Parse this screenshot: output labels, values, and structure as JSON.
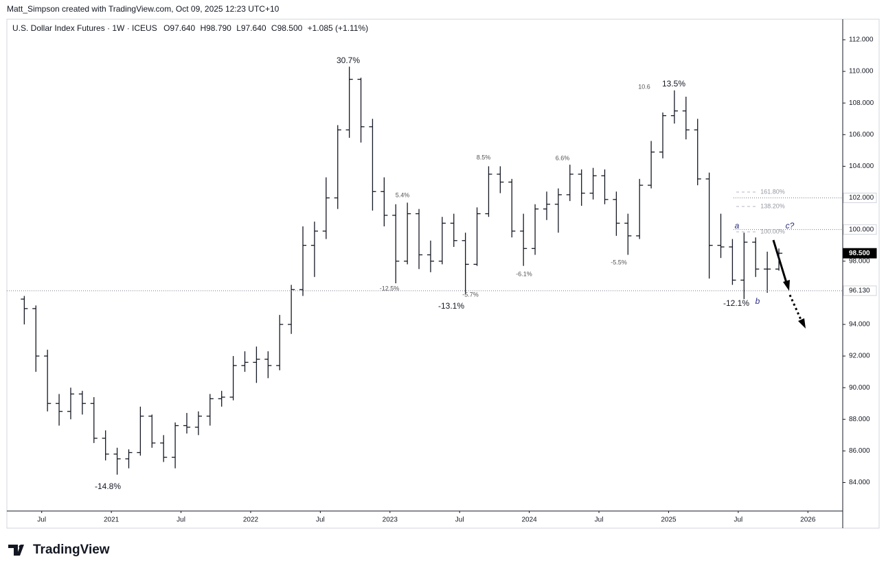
{
  "header": "Matt_Simpson created with TradingView.com, Oct 09, 2025 12:23 UTC+10",
  "footer": "TradingView",
  "chart_data": {
    "type": "ohlc",
    "title": "U.S. Dollar Index Futures · 1W · ICEUS",
    "ohlc_text": [
      "O97.640",
      "H98.790",
      "L97.640",
      "C98.500"
    ],
    "change": "+1.085 (+1.11%)",
    "color": "#131722",
    "x": [
      "2020-05",
      "2020-06",
      "2020-07",
      "2020-08",
      "2020-09",
      "2020-10",
      "2020-11",
      "2020-12",
      "2021-01",
      "2021-02",
      "2021-03",
      "2021-04",
      "2021-05",
      "2021-06",
      "2021-07",
      "2021-08",
      "2021-09",
      "2021-10",
      "2021-11",
      "2021-12",
      "2022-01",
      "2022-02",
      "2022-03",
      "2022-04",
      "2022-05",
      "2022-06",
      "2022-07",
      "2022-08",
      "2022-09",
      "2022-10",
      "2022-11",
      "2022-12",
      "2023-01",
      "2023-02",
      "2023-03",
      "2023-04",
      "2023-05",
      "2023-06",
      "2023-07",
      "2023-08",
      "2023-09",
      "2023-10",
      "2023-11",
      "2023-12",
      "2024-01",
      "2024-02",
      "2024-03",
      "2024-04",
      "2024-05",
      "2024-06",
      "2024-07",
      "2024-08",
      "2024-09",
      "2024-10",
      "2024-11",
      "2024-12",
      "2025-01",
      "2025-02",
      "2025-03",
      "2025-04",
      "2025-05",
      "2025-06",
      "2025-07",
      "2025-08",
      "2025-09",
      "2025-10"
    ],
    "open": [
      95.6,
      95.0,
      92.0,
      89.0,
      88.5,
      89.6,
      89.0,
      86.8,
      85.8,
      85.5,
      85.9,
      88.2,
      86.5,
      85.6,
      87.6,
      87.5,
      88.2,
      89.3,
      89.4,
      91.4,
      91.6,
      91.8,
      91.4,
      94.0,
      96.2,
      99.0,
      99.9,
      102.0,
      106.3,
      109.5,
      106.5,
      102.4,
      100.9,
      98.0,
      101.0,
      98.4,
      98.0,
      100.4,
      99.3,
      97.8,
      101.0,
      103.5,
      103.0,
      99.9,
      98.8,
      101.3,
      101.6,
      102.2,
      103.5,
      102.3,
      103.4,
      101.9,
      100.4,
      99.6,
      102.8,
      104.9,
      107.2,
      107.5,
      106.3,
      103.2,
      99.0,
      98.9,
      96.8,
      99.2,
      97.5,
      97.5
    ],
    "high": [
      95.8,
      95.2,
      92.4,
      89.6,
      90.0,
      89.8,
      89.4,
      87.3,
      86.2,
      86.1,
      88.8,
      88.3,
      87.0,
      87.8,
      88.4,
      88.5,
      89.6,
      89.8,
      92.0,
      92.3,
      92.6,
      92.3,
      94.6,
      96.5,
      100.2,
      100.5,
      103.3,
      106.6,
      110.3,
      109.6,
      107.0,
      103.3,
      101.6,
      101.7,
      101.3,
      99.3,
      100.8,
      101.0,
      99.8,
      101.4,
      104.0,
      104.0,
      103.2,
      101.0,
      101.6,
      102.4,
      102.6,
      104.1,
      103.8,
      103.9,
      103.8,
      102.4,
      101.0,
      103.2,
      105.6,
      107.4,
      108.8,
      108.4,
      107.0,
      103.6,
      101.0,
      99.4,
      99.8,
      99.5,
      98.6,
      98.8
    ],
    "low": [
      94.0,
      91.0,
      88.5,
      87.6,
      88.0,
      88.3,
      86.5,
      85.4,
      84.5,
      84.9,
      85.7,
      86.2,
      85.3,
      84.9,
      87.1,
      87.0,
      87.6,
      88.8,
      89.2,
      91.0,
      90.3,
      90.6,
      91.1,
      93.4,
      95.8,
      97.0,
      99.4,
      101.3,
      105.8,
      105.5,
      101.2,
      100.2,
      96.6,
      97.8,
      97.5,
      97.3,
      97.8,
      98.9,
      95.9,
      97.7,
      100.8,
      102.3,
      99.5,
      97.7,
      98.4,
      100.6,
      99.8,
      101.8,
      101.5,
      101.9,
      101.6,
      99.6,
      98.4,
      99.4,
      102.6,
      104.5,
      106.7,
      105.7,
      102.8,
      96.9,
      98.2,
      96.5,
      95.6,
      97.0,
      96.0,
      97.4
    ],
    "close": [
      95.0,
      92.0,
      89.0,
      88.5,
      89.6,
      89.0,
      86.8,
      85.8,
      85.5,
      85.9,
      88.2,
      86.5,
      85.6,
      87.6,
      87.5,
      88.2,
      89.3,
      89.4,
      91.4,
      91.6,
      91.8,
      91.4,
      94.0,
      96.2,
      99.0,
      99.9,
      102.0,
      106.3,
      109.5,
      106.5,
      102.4,
      100.9,
      98.0,
      101.0,
      98.4,
      98.0,
      100.4,
      99.3,
      97.8,
      101.0,
      103.5,
      103.0,
      99.9,
      98.8,
      101.3,
      101.6,
      102.2,
      103.5,
      102.3,
      103.4,
      101.9,
      100.4,
      99.6,
      102.8,
      104.9,
      107.2,
      107.5,
      106.3,
      103.2,
      99.0,
      98.9,
      96.8,
      99.2,
      97.5,
      97.5,
      98.5
    ],
    "xlim": [
      "2020-04",
      "2026-04"
    ],
    "xticks": [
      {
        "value": "2020-07",
        "label": "Jul"
      },
      {
        "value": "2021-01",
        "label": "2021"
      },
      {
        "value": "2021-07",
        "label": "Jul"
      },
      {
        "value": "2022-01",
        "label": "2022"
      },
      {
        "value": "2022-07",
        "label": "Jul"
      },
      {
        "value": "2023-01",
        "label": "2023"
      },
      {
        "value": "2023-07",
        "label": "Jul"
      },
      {
        "value": "2024-01",
        "label": "2024"
      },
      {
        "value": "2024-07",
        "label": "Jul"
      },
      {
        "value": "2025-01",
        "label": "2025"
      },
      {
        "value": "2025-07",
        "label": "Jul"
      },
      {
        "value": "2026-01",
        "label": "2026"
      }
    ],
    "ylim": [
      82.2,
      113.3
    ],
    "yticks": [
      {
        "value": 84,
        "label": "84.000"
      },
      {
        "value": 86,
        "label": "86.000"
      },
      {
        "value": 88,
        "label": "88.000"
      },
      {
        "value": 90,
        "label": "90.000"
      },
      {
        "value": 92,
        "label": "92.000"
      },
      {
        "value": 94,
        "label": "94.000"
      },
      {
        "value": 96,
        "label": "96.000"
      },
      {
        "value": 98,
        "label": "98.000"
      },
      {
        "value": 100,
        "label": "100.000"
      },
      {
        "value": 102,
        "label": "102.000"
      },
      {
        "value": 104,
        "label": "104.000"
      },
      {
        "value": 106,
        "label": "106.000"
      },
      {
        "value": 108,
        "label": "108.000"
      },
      {
        "value": 110,
        "label": "110.000"
      },
      {
        "value": 112,
        "label": "112.000"
      }
    ],
    "price_lines": [
      {
        "value": 96.13,
        "label": "96.130",
        "style": "outline",
        "line": "full"
      },
      {
        "value": 98.5,
        "label": "98.500",
        "style": "filled",
        "line": "none"
      },
      {
        "value": 102,
        "label": "102.000",
        "style": "outline",
        "line": "partial"
      },
      {
        "value": 100,
        "label": "100.000",
        "style": "outline",
        "line": "partial"
      }
    ],
    "annotations": [
      {
        "text": "30.7%",
        "style": "bold"
      },
      {
        "text": "-14.8%",
        "style": "bold"
      },
      {
        "text": "5.4%",
        "style": "small"
      },
      {
        "text": "-12.5%",
        "style": "small"
      },
      {
        "text": "-13.1%",
        "style": "bold"
      },
      {
        "text": "-5.7%",
        "style": "small"
      },
      {
        "text": "8.5%",
        "style": "small"
      },
      {
        "text": "-6.1%",
        "style": "small"
      },
      {
        "text": "6.6%",
        "style": "small"
      },
      {
        "text": "-5.5%",
        "style": "small"
      },
      {
        "text": "10.6",
        "style": "small"
      },
      {
        "text": "13.5%",
        "style": "bold"
      },
      {
        "text": "-12.1%",
        "style": "bold"
      },
      {
        "text": "a",
        "style": "wave"
      },
      {
        "text": "b",
        "style": "wave"
      },
      {
        "text": "c?",
        "style": "wave"
      },
      {
        "text": "161.80%",
        "style": "fib"
      },
      {
        "text": "138.20%",
        "style": "fib"
      },
      {
        "text": "100.00%",
        "style": "fib"
      }
    ]
  }
}
